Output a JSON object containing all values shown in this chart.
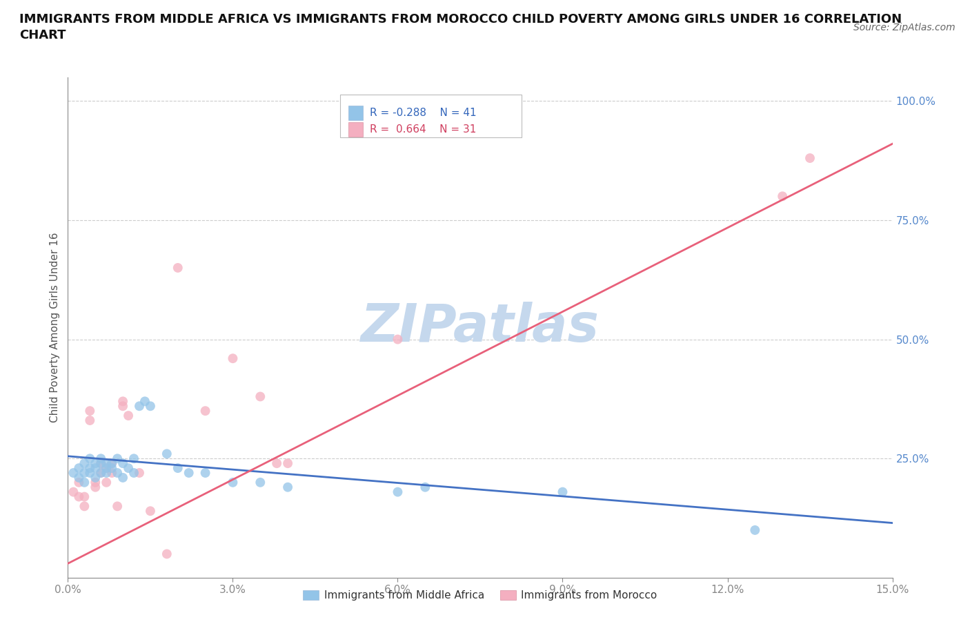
{
  "title": "IMMIGRANTS FROM MIDDLE AFRICA VS IMMIGRANTS FROM MOROCCO CHILD POVERTY AMONG GIRLS UNDER 16 CORRELATION\nCHART",
  "source": "Source: ZipAtlas.com",
  "ylabel": "Child Poverty Among Girls Under 16",
  "xlim": [
    0.0,
    0.15
  ],
  "ylim": [
    0.0,
    1.05
  ],
  "xticks": [
    0.0,
    0.03,
    0.06,
    0.09,
    0.12,
    0.15
  ],
  "xticklabels": [
    "0.0%",
    "3.0%",
    "6.0%",
    "9.0%",
    "12.0%",
    "15.0%"
  ],
  "yticks_right": [
    0.25,
    0.5,
    0.75,
    1.0
  ],
  "yticklabels_right": [
    "25.0%",
    "50.0%",
    "75.0%",
    "100.0%"
  ],
  "grid_color": "#cccccc",
  "background_color": "#ffffff",
  "watermark": "ZIPatlas",
  "watermark_color": "#c5d8ed",
  "blue_color": "#93c4e8",
  "pink_color": "#f4afc0",
  "blue_line_color": "#4472c4",
  "pink_line_color": "#e8607a",
  "legend_R_blue": "R = -0.288",
  "legend_N_blue": "N = 41",
  "legend_R_pink": "R =  0.664",
  "legend_N_pink": "N = 31",
  "legend_label_blue": "Immigrants from Middle Africa",
  "legend_label_pink": "Immigrants from Morocco",
  "blue_x": [
    0.001,
    0.002,
    0.002,
    0.003,
    0.003,
    0.003,
    0.004,
    0.004,
    0.004,
    0.005,
    0.005,
    0.005,
    0.006,
    0.006,
    0.006,
    0.007,
    0.007,
    0.007,
    0.008,
    0.008,
    0.009,
    0.009,
    0.01,
    0.01,
    0.011,
    0.012,
    0.012,
    0.013,
    0.014,
    0.015,
    0.018,
    0.02,
    0.022,
    0.025,
    0.03,
    0.035,
    0.04,
    0.06,
    0.065,
    0.09,
    0.125
  ],
  "blue_y": [
    0.22,
    0.21,
    0.23,
    0.24,
    0.22,
    0.2,
    0.23,
    0.25,
    0.22,
    0.24,
    0.23,
    0.21,
    0.25,
    0.22,
    0.24,
    0.23,
    0.24,
    0.22,
    0.23,
    0.24,
    0.25,
    0.22,
    0.24,
    0.21,
    0.23,
    0.25,
    0.22,
    0.36,
    0.37,
    0.36,
    0.26,
    0.23,
    0.22,
    0.22,
    0.2,
    0.2,
    0.19,
    0.18,
    0.19,
    0.18,
    0.1
  ],
  "pink_x": [
    0.001,
    0.002,
    0.002,
    0.003,
    0.003,
    0.004,
    0.004,
    0.005,
    0.005,
    0.006,
    0.006,
    0.007,
    0.007,
    0.008,
    0.008,
    0.009,
    0.01,
    0.01,
    0.011,
    0.013,
    0.015,
    0.018,
    0.02,
    0.025,
    0.03,
    0.035,
    0.038,
    0.04,
    0.06,
    0.13,
    0.135
  ],
  "pink_y": [
    0.18,
    0.2,
    0.17,
    0.15,
    0.17,
    0.33,
    0.35,
    0.2,
    0.19,
    0.22,
    0.24,
    0.2,
    0.23,
    0.24,
    0.22,
    0.15,
    0.37,
    0.36,
    0.34,
    0.22,
    0.14,
    0.05,
    0.65,
    0.35,
    0.46,
    0.38,
    0.24,
    0.24,
    0.5,
    0.8,
    0.88
  ],
  "blue_trend_x": [
    0.0,
    0.15
  ],
  "blue_trend_y": [
    0.255,
    0.115
  ],
  "pink_trend_x": [
    0.0,
    0.15
  ],
  "pink_trend_y": [
    0.03,
    0.91
  ]
}
